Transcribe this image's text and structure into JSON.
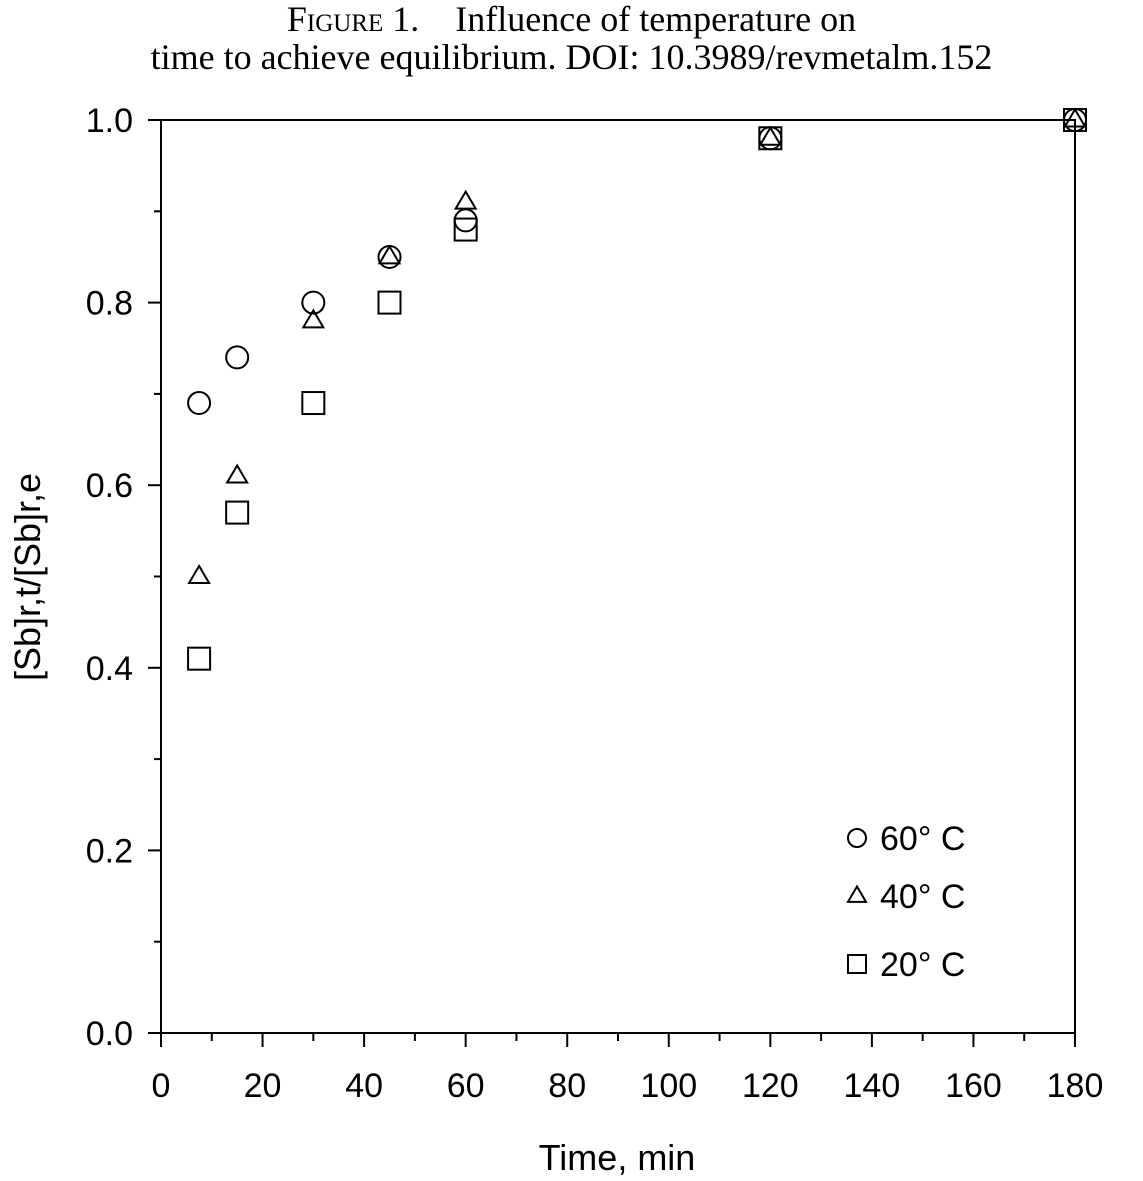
{
  "caption": {
    "label": "Figure 1.",
    "line1": "Influence of temperature on",
    "line2": "time to achieve equilibrium. DOI: 10.3989/revmetalm.152"
  },
  "chart_data": {
    "type": "scatter",
    "xlabel": "Time, min",
    "ylabel": "[Sb]r,t/[Sb]r,e",
    "xlim": [
      0,
      180
    ],
    "ylim": [
      0,
      1.0
    ],
    "x_ticks": [
      "0",
      "20",
      "40",
      "60",
      "80",
      "100",
      "120",
      "140",
      "160",
      "180"
    ],
    "y_ticks": [
      "0.0",
      "0.2",
      "0.4",
      "0.6",
      "0.8",
      "1.0"
    ],
    "grid": false,
    "legend_position": "bottom-right",
    "series": [
      {
        "name": "60° C",
        "marker": "circle",
        "points": [
          [
            7.5,
            0.69
          ],
          [
            15,
            0.74
          ],
          [
            30,
            0.8
          ],
          [
            45,
            0.85
          ],
          [
            60,
            0.89
          ],
          [
            120,
            0.98
          ],
          [
            180,
            1.0
          ]
        ]
      },
      {
        "name": "40° C",
        "marker": "triangle",
        "points": [
          [
            7.5,
            0.5
          ],
          [
            15,
            0.61
          ],
          [
            30,
            0.78
          ],
          [
            45,
            0.85
          ],
          [
            60,
            0.91
          ],
          [
            120,
            0.98
          ],
          [
            180,
            1.0
          ]
        ]
      },
      {
        "name": "20° C",
        "marker": "square",
        "points": [
          [
            7.5,
            0.41
          ],
          [
            15,
            0.57
          ],
          [
            30,
            0.69
          ],
          [
            45,
            0.8
          ],
          [
            60,
            0.88
          ],
          [
            120,
            0.98
          ],
          [
            180,
            1.0
          ]
        ]
      }
    ]
  }
}
